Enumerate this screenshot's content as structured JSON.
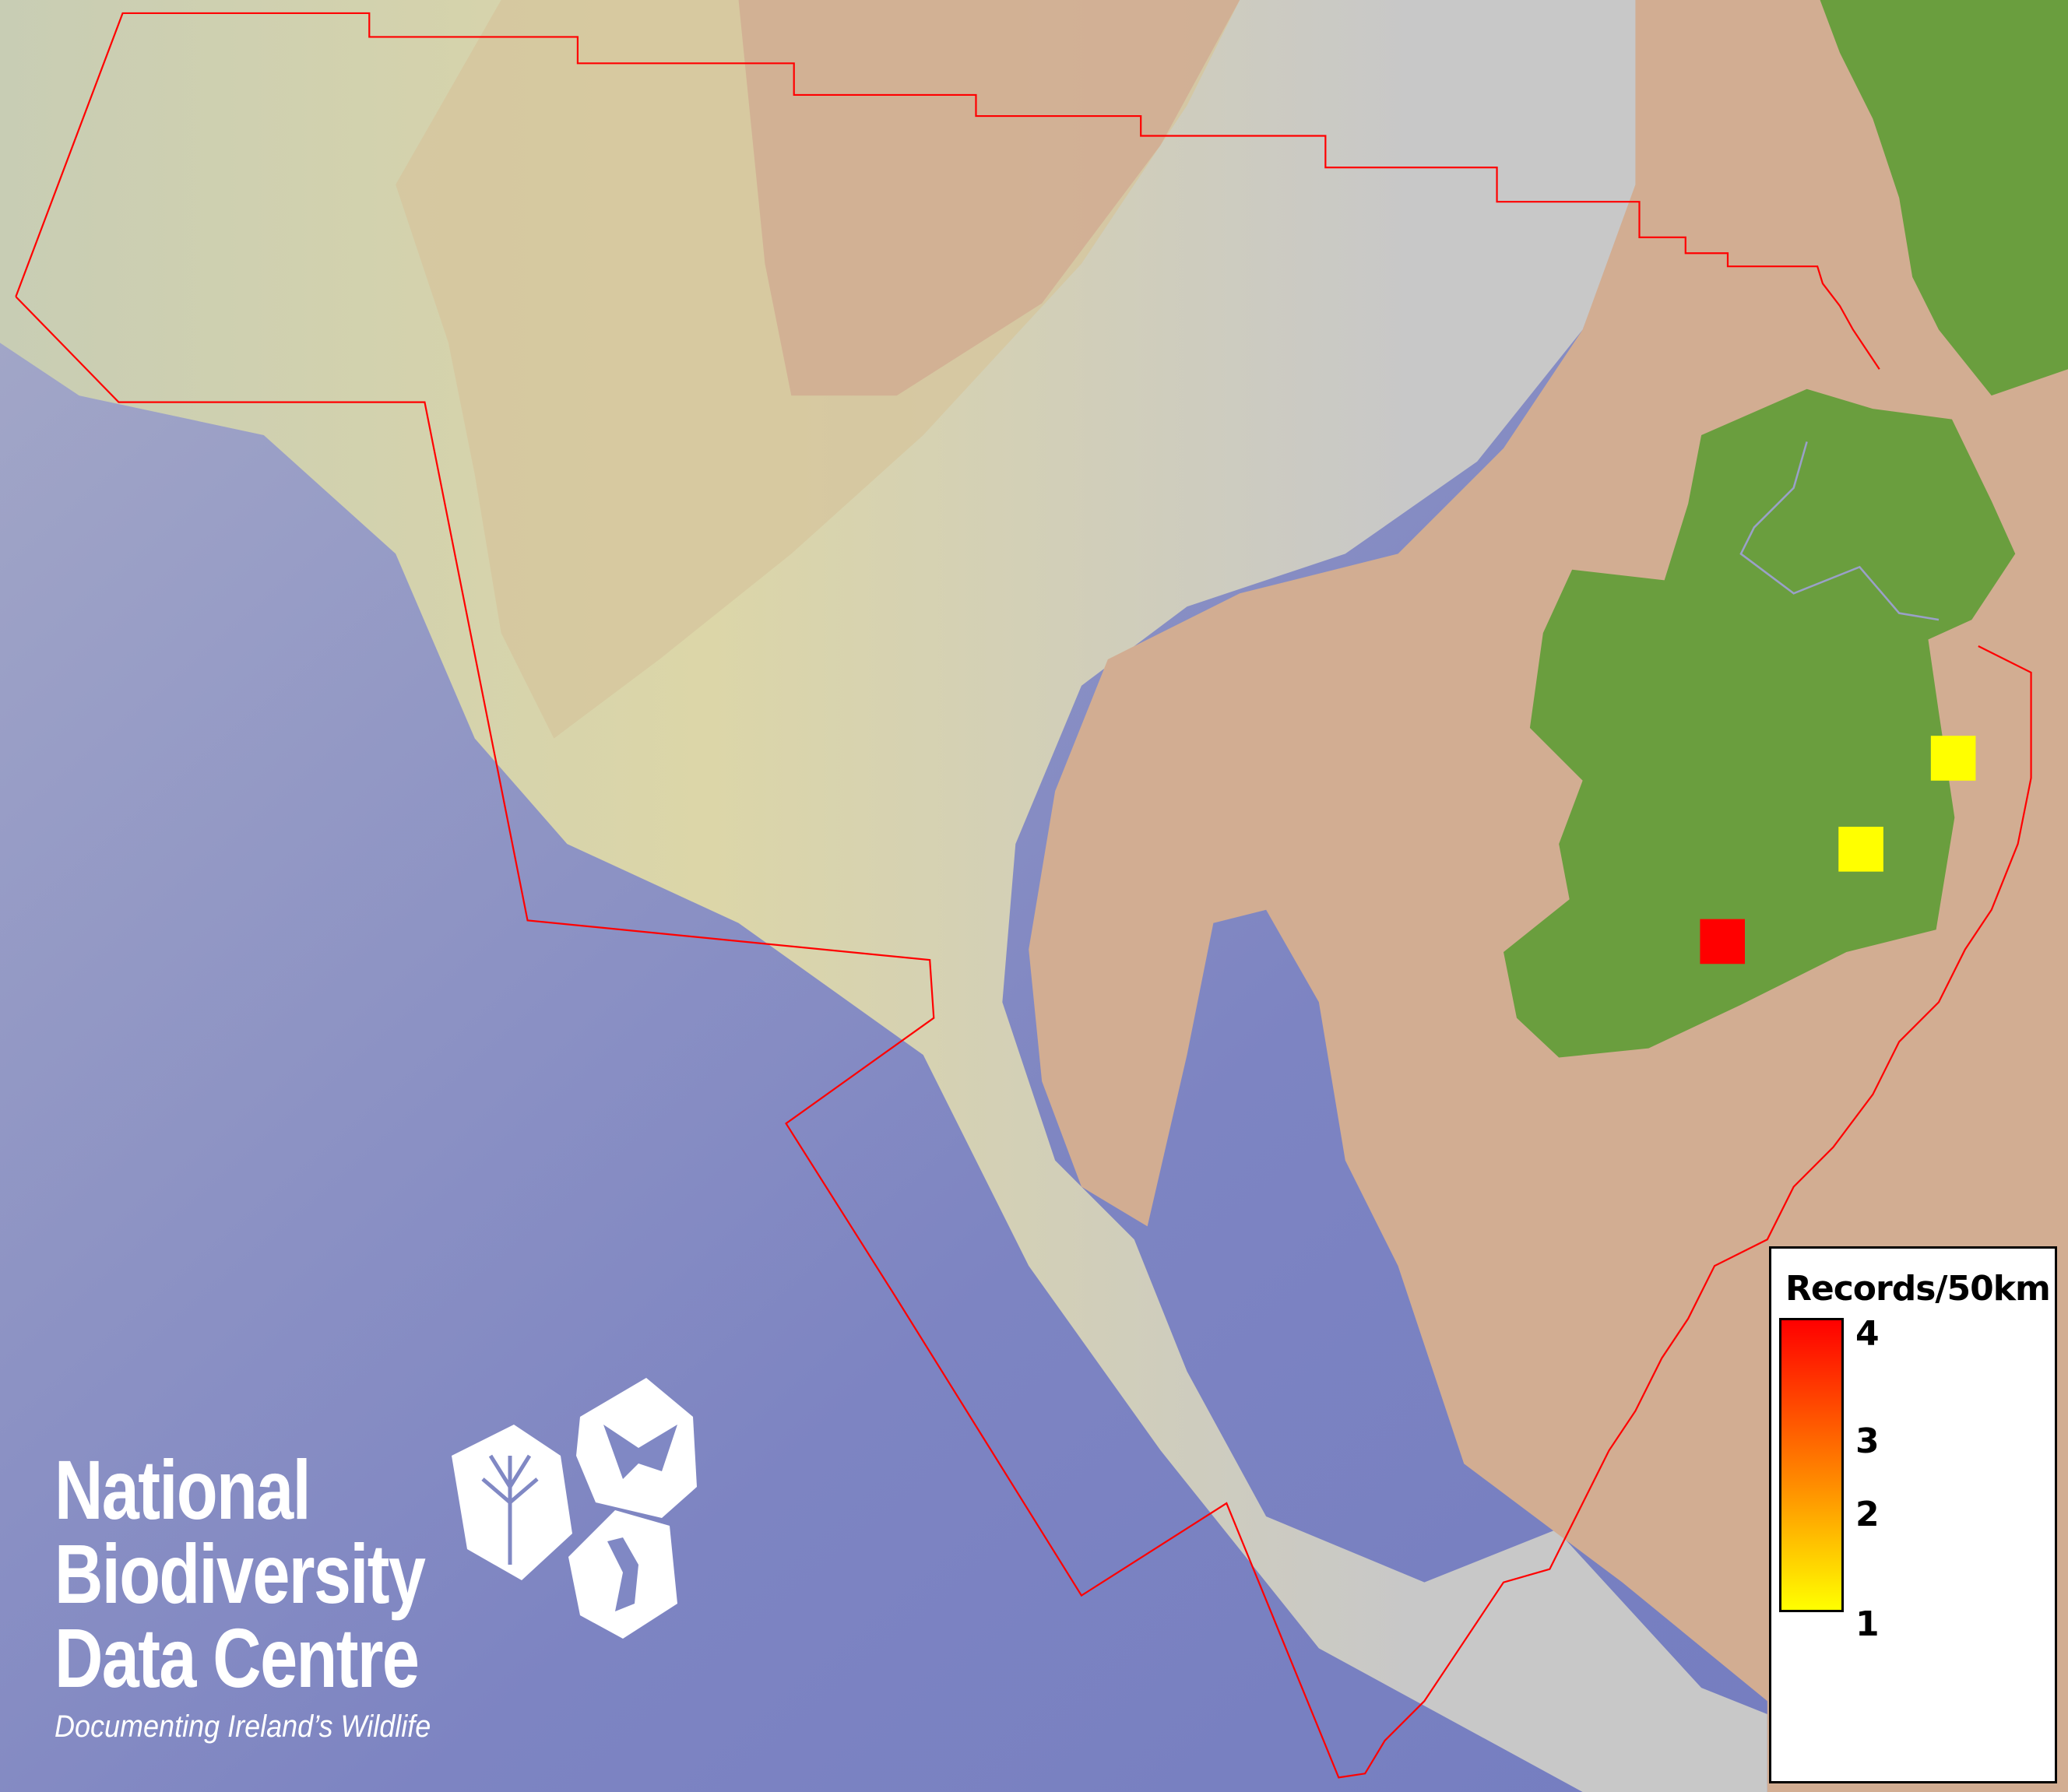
{
  "map": {
    "colors": {
      "ocean": "#7f86c4",
      "slope": "#c9c9b0",
      "shelf": "#d2ad92",
      "land": "#6a9e3e",
      "boundary": "#ff0000"
    },
    "records": [
      {
        "cell": "east-coast-north",
        "records": 1
      },
      {
        "cell": "east-midlands",
        "records": 1
      },
      {
        "cell": "south-west",
        "records": 4
      }
    ]
  },
  "legend": {
    "title": "Records/50km",
    "ticks": [
      "4",
      "3",
      "2",
      "1"
    ],
    "min": 1,
    "max": 4,
    "color_low": "#ffff00",
    "color_high": "#ff0000"
  },
  "logo": {
    "line1": "National",
    "line2": "Biodiversity",
    "line3": "Data Centre",
    "tagline": "Documenting Ireland’s Wildlife"
  }
}
